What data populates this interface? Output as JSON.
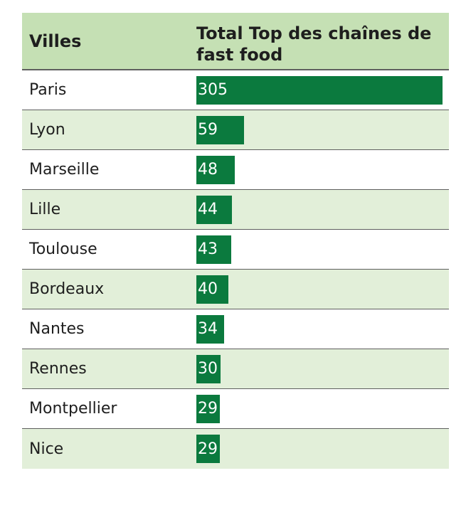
{
  "chart_data": {
    "type": "table",
    "columns": [
      "Villes",
      "Total Top des chaînes de fast food"
    ],
    "categories": [
      "Paris",
      "Lyon",
      "Marseille",
      "Lille",
      "Toulouse",
      "Bordeaux",
      "Nantes",
      "Rennes",
      "Montpellier",
      "Nice"
    ],
    "values": [
      305,
      59,
      48,
      44,
      43,
      40,
      34,
      30,
      29,
      29
    ],
    "max": 305
  },
  "colors": {
    "header_bg": "#c5e0b4",
    "row_alt_bg": "#e2efd9",
    "bar": "#0b7a3e"
  }
}
